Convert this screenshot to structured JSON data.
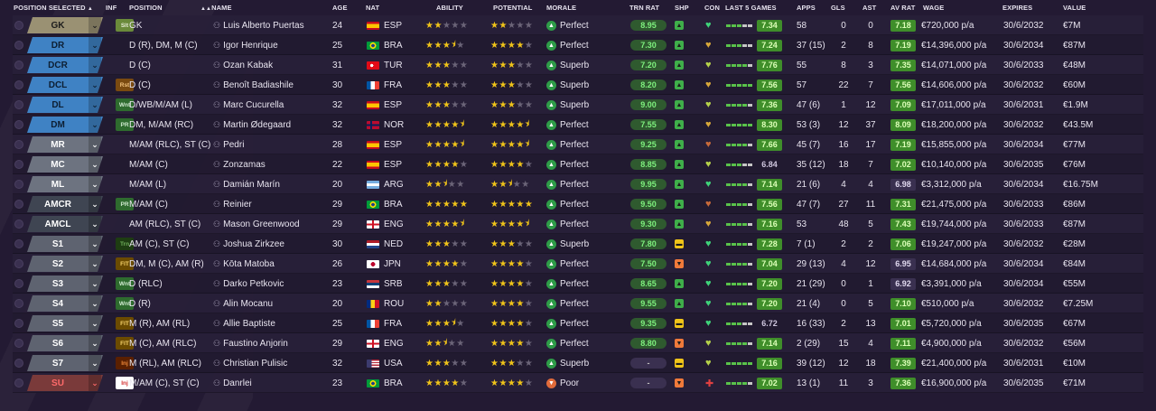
{
  "headers": {
    "position_selected": "POSITION SELECTED",
    "inf": "INF",
    "position": "POSITION",
    "name": "NAME",
    "age": "AGE",
    "nat": "NAT",
    "ability": "ABILITY",
    "potential": "POTENTIAL",
    "morale": "MORALE",
    "trn_rat": "TRN RAT",
    "shp": "SHP",
    "con": "CON",
    "last5": "LAST 5 GAMES",
    "apps": "APPS",
    "gls": "GLS",
    "ast": "AST",
    "av_rat": "AV RAT",
    "wage": "WAGE",
    "expires": "EXPIRES",
    "value": "VALUE"
  },
  "sort_indicators": {
    "position_selected": "▲",
    "name": "▲▲"
  },
  "colors": {
    "gk": "#9a9173",
    "def": "#3f82c4",
    "mid": "#6d7380",
    "att": "#3f4552",
    "sub": "#5e6370",
    "res": "#7a3a3a",
    "green_badge": "#4caf50",
    "star": "#f0c419"
  },
  "players": [
    {
      "pos_sel": "GK",
      "pos_cls": "gk",
      "inf": "Slt",
      "inf_cls": "slt",
      "position": "GK",
      "name": "Luis Alberto Puertas",
      "age": "24",
      "flag": "esp",
      "nat": "ESP",
      "ability": 2,
      "potential": 2,
      "morale": "Perfect",
      "mood_cls": "perfect",
      "trn": "8.95",
      "shp": "up",
      "con": "full",
      "form": "3,2",
      "last5": "7.34",
      "apps": "58",
      "gls": "0",
      "ast": "0",
      "avr": "7.18",
      "avr_cls": "good",
      "wage": "€720,000 p/a",
      "expires": "30/6/2032",
      "value": "€7M"
    },
    {
      "pos_sel": "DR",
      "pos_cls": "def",
      "inf": "",
      "inf_cls": "",
      "position": "D (R), DM, M (C)",
      "name": "Igor Henrique",
      "age": "25",
      "flag": "bra",
      "nat": "BRA",
      "ability": 3.5,
      "potential": 4,
      "morale": "Perfect",
      "mood_cls": "perfect",
      "trn": "7.30",
      "shp": "up",
      "con": "ok",
      "form": "3,2",
      "last5": "7.24",
      "apps": "37 (15)",
      "gls": "2",
      "ast": "8",
      "avr": "7.19",
      "avr_cls": "good",
      "wage": "€14,396,000 p/a",
      "expires": "30/6/2034",
      "value": "€87M"
    },
    {
      "pos_sel": "DCR",
      "pos_cls": "def",
      "inf": "",
      "inf_cls": "",
      "position": "D (C)",
      "name": "Ozan Kabak",
      "age": "31",
      "flag": "tur",
      "nat": "TUR",
      "ability": 3,
      "potential": 3,
      "morale": "Superb",
      "mood_cls": "superb",
      "trn": "7.20",
      "shp": "up",
      "con": "ok2",
      "form": "4,1",
      "last5": "7.76",
      "apps": "55",
      "gls": "8",
      "ast": "3",
      "avr": "7.35",
      "avr_cls": "good",
      "wage": "€14,071,000 p/a",
      "expires": "30/6/2033",
      "value": "€48M"
    },
    {
      "pos_sel": "DCL",
      "pos_cls": "def",
      "inf": "Rst",
      "inf_cls": "rst",
      "position": "D (C)",
      "name": "Benoît Badiashile",
      "age": "30",
      "flag": "fra",
      "nat": "FRA",
      "ability": 3,
      "potential": 3,
      "morale": "Superb",
      "mood_cls": "superb",
      "trn": "8.20",
      "shp": "up",
      "con": "ok",
      "form": "5,0",
      "last5": "7.56",
      "apps": "57",
      "gls": "22",
      "ast": "7",
      "avr": "7.56",
      "avr_cls": "good",
      "wage": "€14,606,000 p/a",
      "expires": "30/6/2032",
      "value": "€60M"
    },
    {
      "pos_sel": "DL",
      "pos_cls": "def",
      "inf": "Wnt",
      "inf_cls": "wnt",
      "position": "D/WB/M/AM (L)",
      "name": "Marc Cucurella",
      "age": "32",
      "flag": "esp",
      "nat": "ESP",
      "ability": 3,
      "potential": 3,
      "morale": "Superb",
      "mood_cls": "superb",
      "trn": "9.00",
      "shp": "up",
      "con": "ok2",
      "form": "4,1",
      "last5": "7.36",
      "apps": "47 (6)",
      "gls": "1",
      "ast": "12",
      "avr": "7.09",
      "avr_cls": "good",
      "wage": "€17,011,000 p/a",
      "expires": "30/6/2031",
      "value": "€1.9M"
    },
    {
      "pos_sel": "DM",
      "pos_cls": "def",
      "inf": "PR",
      "inf_cls": "pr",
      "position": "DM, M/AM (RC)",
      "name": "Martin Ødegaard",
      "age": "32",
      "flag": "nor",
      "nat": "NOR",
      "ability": 4.5,
      "potential": 4.5,
      "morale": "Perfect",
      "mood_cls": "perfect",
      "trn": "7.55",
      "shp": "up",
      "con": "ok",
      "form": "5,0",
      "last5": "8.30",
      "apps": "53 (3)",
      "gls": "12",
      "ast": "37",
      "avr": "8.09",
      "avr_cls": "good",
      "wage": "€18,200,000 p/a",
      "expires": "30/6/2032",
      "value": "€43.5M"
    },
    {
      "pos_sel": "MR",
      "pos_cls": "mid",
      "inf": "",
      "inf_cls": "",
      "position": "M/AM (RLC), ST (C)",
      "name": "Pedri",
      "age": "28",
      "flag": "esp",
      "nat": "ESP",
      "ability": 4.5,
      "potential": 4.5,
      "morale": "Perfect",
      "mood_cls": "perfect",
      "trn": "9.25",
      "shp": "up",
      "con": "low",
      "form": "4,1",
      "last5": "7.66",
      "apps": "45 (7)",
      "gls": "16",
      "ast": "17",
      "avr": "7.19",
      "avr_cls": "good",
      "wage": "€15,855,000 p/a",
      "expires": "30/6/2034",
      "value": "€77M"
    },
    {
      "pos_sel": "MC",
      "pos_cls": "mid",
      "inf": "",
      "inf_cls": "",
      "position": "M/AM (C)",
      "name": "Zonzamas",
      "age": "22",
      "flag": "esp",
      "nat": "ESP",
      "ability": 4,
      "potential": 4,
      "morale": "Perfect",
      "mood_cls": "perfect",
      "trn": "8.85",
      "shp": "up",
      "con": "ok2",
      "form": "3,2",
      "last5": "6.84",
      "apps": "35 (12)",
      "gls": "18",
      "ast": "7",
      "avr": "7.02",
      "avr_cls": "good",
      "wage": "€10,140,000 p/a",
      "expires": "30/6/2035",
      "value": "€76M"
    },
    {
      "pos_sel": "ML",
      "pos_cls": "mid",
      "inf": "",
      "inf_cls": "",
      "position": "M/AM (L)",
      "name": "Damián Marín",
      "age": "20",
      "flag": "arg",
      "nat": "ARG",
      "ability": 2.5,
      "potential": 2.5,
      "morale": "Perfect",
      "mood_cls": "perfect",
      "trn": "9.95",
      "shp": "up",
      "con": "full",
      "form": "4,1",
      "last5": "7.14",
      "apps": "21 (6)",
      "gls": "4",
      "ast": "4",
      "avr": "6.98",
      "avr_cls": "mid",
      "wage": "€3,312,000 p/a",
      "expires": "30/6/2034",
      "value": "€16.75M"
    },
    {
      "pos_sel": "AMCR",
      "pos_cls": "att",
      "inf": "PR",
      "inf_cls": "pr",
      "position": "M/AM (C)",
      "name": "Reinier",
      "age": "29",
      "flag": "bra",
      "nat": "BRA",
      "ability": 5,
      "potential": 5,
      "morale": "Perfect",
      "mood_cls": "perfect",
      "trn": "9.50",
      "shp": "up",
      "con": "low",
      "form": "4,1",
      "last5": "7.56",
      "apps": "47 (7)",
      "gls": "27",
      "ast": "11",
      "avr": "7.31",
      "avr_cls": "good",
      "wage": "€21,475,000 p/a",
      "expires": "30/6/2033",
      "value": "€86M"
    },
    {
      "pos_sel": "AMCL",
      "pos_cls": "att",
      "inf": "",
      "inf_cls": "",
      "position": "AM (RLC), ST (C)",
      "name": "Mason Greenwood",
      "age": "29",
      "flag": "eng",
      "nat": "ENG",
      "ability": 4.5,
      "potential": 4.5,
      "morale": "Perfect",
      "mood_cls": "perfect",
      "trn": "9.30",
      "shp": "up",
      "con": "ok",
      "form": "4,1",
      "last5": "7.16",
      "apps": "53",
      "gls": "48",
      "ast": "5",
      "avr": "7.43",
      "avr_cls": "good",
      "wage": "€19,744,000 p/a",
      "expires": "30/6/2033",
      "value": "€87M"
    },
    {
      "pos_sel": "S1",
      "pos_cls": "sub",
      "inf": "Trn",
      "inf_cls": "trn",
      "position": "AM (C), ST (C)",
      "name": "Joshua Zirkzee",
      "age": "30",
      "flag": "ned",
      "nat": "NED",
      "ability": 3,
      "potential": 3,
      "morale": "Superb",
      "mood_cls": "superb",
      "trn": "7.80",
      "shp": "mid",
      "con": "full",
      "form": "4,1",
      "last5": "7.28",
      "apps": "7 (1)",
      "gls": "2",
      "ast": "2",
      "avr": "7.06",
      "avr_cls": "good",
      "wage": "€19,247,000 p/a",
      "expires": "30/6/2032",
      "value": "€28M"
    },
    {
      "pos_sel": "S2",
      "pos_cls": "sub",
      "inf": "FIT",
      "inf_cls": "fit",
      "position": "DM, M (C), AM (R)",
      "name": "Kōta Matoba",
      "age": "26",
      "flag": "jpn",
      "nat": "JPN",
      "ability": 4,
      "potential": 4,
      "morale": "Perfect",
      "mood_cls": "perfect",
      "trn": "7.50",
      "shp": "down",
      "con": "full",
      "form": "4,1",
      "last5": "7.04",
      "apps": "29 (13)",
      "gls": "4",
      "ast": "12",
      "avr": "6.95",
      "avr_cls": "mid",
      "wage": "€14,684,000 p/a",
      "expires": "30/6/2034",
      "value": "€84M"
    },
    {
      "pos_sel": "S3",
      "pos_cls": "sub",
      "inf": "Wnt",
      "inf_cls": "wnt",
      "position": "D (RLC)",
      "name": "Darko Petkovic",
      "age": "23",
      "flag": "srb",
      "nat": "SRB",
      "ability": 3,
      "potential": 4,
      "morale": "Perfect",
      "mood_cls": "perfect",
      "trn": "8.65",
      "shp": "up",
      "con": "full",
      "form": "4,1",
      "last5": "7.20",
      "apps": "21 (29)",
      "gls": "0",
      "ast": "1",
      "avr": "6.92",
      "avr_cls": "mid",
      "wage": "€3,391,000 p/a",
      "expires": "30/6/2034",
      "value": "€55M"
    },
    {
      "pos_sel": "S4",
      "pos_cls": "sub",
      "inf": "Wnt",
      "inf_cls": "wnt",
      "position": "D (R)",
      "name": "Alin Mocanu",
      "age": "20",
      "flag": "rou",
      "nat": "ROU",
      "ability": 2,
      "potential": 4,
      "morale": "Perfect",
      "mood_cls": "perfect",
      "trn": "9.55",
      "shp": "up",
      "con": "full",
      "form": "4,1",
      "last5": "7.20",
      "apps": "21 (4)",
      "gls": "0",
      "ast": "5",
      "avr": "7.10",
      "avr_cls": "good",
      "wage": "€510,000 p/a",
      "expires": "30/6/2032",
      "value": "€7.25M"
    },
    {
      "pos_sel": "S5",
      "pos_cls": "sub",
      "inf": "FIT",
      "inf_cls": "fit",
      "position": "M (R), AM (RL)",
      "name": "Allie Baptiste",
      "age": "25",
      "flag": "fra",
      "nat": "FRA",
      "ability": 3.5,
      "potential": 4,
      "morale": "Perfect",
      "mood_cls": "perfect",
      "trn": "9.35",
      "shp": "mid",
      "con": "full",
      "form": "3,2",
      "last5": "6.72",
      "apps": "16 (33)",
      "gls": "2",
      "ast": "13",
      "avr": "7.01",
      "avr_cls": "good",
      "wage": "€5,720,000 p/a",
      "expires": "30/6/2035",
      "value": "€67M"
    },
    {
      "pos_sel": "S6",
      "pos_cls": "sub",
      "inf": "FIT",
      "inf_cls": "fit",
      "position": "M (C), AM (RLC)",
      "name": "Faustino Anjorin",
      "age": "29",
      "flag": "eng",
      "nat": "ENG",
      "ability": 2.5,
      "potential": 4,
      "morale": "Perfect",
      "mood_cls": "perfect",
      "trn": "8.80",
      "shp": "down",
      "con": "ok2",
      "form": "4,1",
      "last5": "7.14",
      "apps": "2 (29)",
      "gls": "15",
      "ast": "4",
      "avr": "7.11",
      "avr_cls": "good",
      "wage": "€4,900,000 p/a",
      "expires": "30/6/2032",
      "value": "€56M"
    },
    {
      "pos_sel": "S7",
      "pos_cls": "sub",
      "inf": "Inj",
      "inf_cls": "inj",
      "position": "M (RL), AM (RLC)",
      "name": "Christian Pulisic",
      "age": "32",
      "flag": "usa",
      "nat": "USA",
      "ability": 3,
      "potential": 3,
      "morale": "Superb",
      "mood_cls": "superb",
      "trn": "-",
      "shp": "mid",
      "con": "ok2",
      "form": "5,0",
      "last5": "7.16",
      "apps": "39 (12)",
      "gls": "12",
      "ast": "18",
      "avr": "7.39",
      "avr_cls": "good",
      "wage": "€21,400,000 p/a",
      "expires": "30/6/2031",
      "value": "€10M"
    },
    {
      "pos_sel": "SU",
      "pos_cls": "res",
      "inf": "Inj",
      "inf_cls": "injr",
      "position": "M/AM (C), ST (C)",
      "name": "Danrlei",
      "age": "23",
      "flag": "bra",
      "nat": "BRA",
      "ability": 4,
      "potential": 4,
      "morale": "Poor",
      "mood_cls": "poor",
      "trn": "-",
      "shp": "down",
      "con": "hurt",
      "form": "4,1",
      "last5": "7.02",
      "apps": "13 (1)",
      "gls": "11",
      "ast": "3",
      "avr": "7.36",
      "avr_cls": "good",
      "wage": "€16,900,000 p/a",
      "expires": "30/6/2035",
      "value": "€71M"
    }
  ]
}
